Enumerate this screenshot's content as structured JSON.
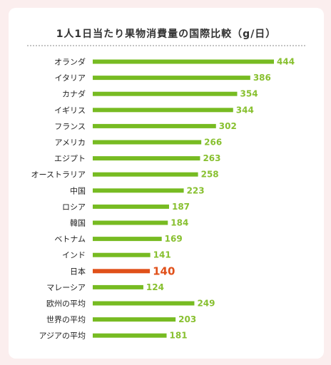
{
  "chart_data": {
    "type": "bar",
    "orientation": "horizontal",
    "title": "1人1日当たり果物消費量の国際比較（g/日）",
    "categories": [
      "オランダ",
      "イタリア",
      "カナダ",
      "イギリス",
      "フランス",
      "アメリカ",
      "エジプト",
      "オーストラリア",
      "中国",
      "ロシア",
      "韓国",
      "ベトナム",
      "インド",
      "日本",
      "マレーシア",
      "欧州の平均",
      "世界の平均",
      "アジアの平均"
    ],
    "values": [
      444,
      386,
      354,
      344,
      302,
      266,
      263,
      258,
      223,
      187,
      184,
      169,
      141,
      140,
      124,
      249,
      203,
      181
    ],
    "highlight": "日本",
    "colors": {
      "bar": "#77bb22",
      "highlight": "#e0501a",
      "label": "#88c030"
    }
  }
}
